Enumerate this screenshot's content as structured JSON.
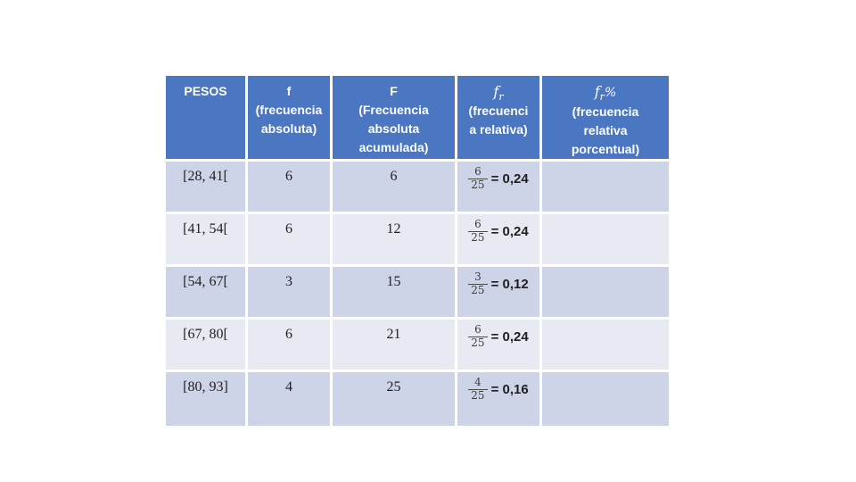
{
  "page": {
    "background": "#ffffff"
  },
  "colors": {
    "header_bg": "#4a76c2",
    "header_text": "#ffffff",
    "row_dark": "#ced4e7",
    "row_light": "#e8eaf3"
  },
  "table": {
    "header": {
      "pesos": "PESOS",
      "f": {
        "symbol": "f",
        "desc_lines": [
          "(frecuencia",
          "absoluta)"
        ]
      },
      "F": {
        "symbol": "F",
        "desc_lines": [
          "(Frecuencia",
          "absoluta",
          "acumulada)"
        ]
      },
      "fr": {
        "symbol": "f",
        "sub": "r",
        "desc_lines": [
          "(frecuenci",
          "a relativa)"
        ]
      },
      "fr_pct": {
        "symbol": "f",
        "sub": "r",
        "suffix": "%",
        "desc_lines": [
          "(frecuencia",
          "relativa",
          "porcentual)"
        ]
      }
    },
    "rows": [
      {
        "pesos": "[28, 41[",
        "f": "6",
        "F": "6",
        "fr_num": "6",
        "fr_den": "25",
        "fr_eq": "= 0,24",
        "fr_pct": ""
      },
      {
        "pesos": "[41, 54[",
        "f": "6",
        "F": "12",
        "fr_num": "6",
        "fr_den": "25",
        "fr_eq": "= 0,24",
        "fr_pct": ""
      },
      {
        "pesos": "[54, 67[",
        "f": "3",
        "F": "15",
        "fr_num": "3",
        "fr_den": "25",
        "fr_eq": "= 0,12",
        "fr_pct": ""
      },
      {
        "pesos": "[67, 80[",
        "f": "6",
        "F": "21",
        "fr_num": "6",
        "fr_den": "25",
        "fr_eq": "= 0,24",
        "fr_pct": ""
      },
      {
        "pesos": "[80, 93]",
        "f": "4",
        "F": "25",
        "fr_num": "4",
        "fr_den": "25",
        "fr_eq": "= 0,16",
        "fr_pct": ""
      }
    ]
  },
  "chart_data": {
    "type": "table",
    "title": "",
    "columns": [
      "PESOS",
      "f (frecuencia absoluta)",
      "F (Frecuencia absoluta acumulada)",
      "fr (frecuencia relativa)",
      "fr% (frecuencia relativa porcentual)"
    ],
    "rows": [
      [
        "[28, 41[",
        6,
        6,
        "6/25 = 0,24",
        ""
      ],
      [
        "[41, 54[",
        6,
        12,
        "6/25 = 0,24",
        ""
      ],
      [
        "[54, 67[",
        3,
        15,
        "3/25 = 0,12",
        ""
      ],
      [
        "[67, 80[",
        6,
        21,
        "6/25 = 0,24",
        ""
      ],
      [
        "[80, 93]",
        4,
        25,
        "4/25 = 0,16",
        ""
      ]
    ]
  }
}
